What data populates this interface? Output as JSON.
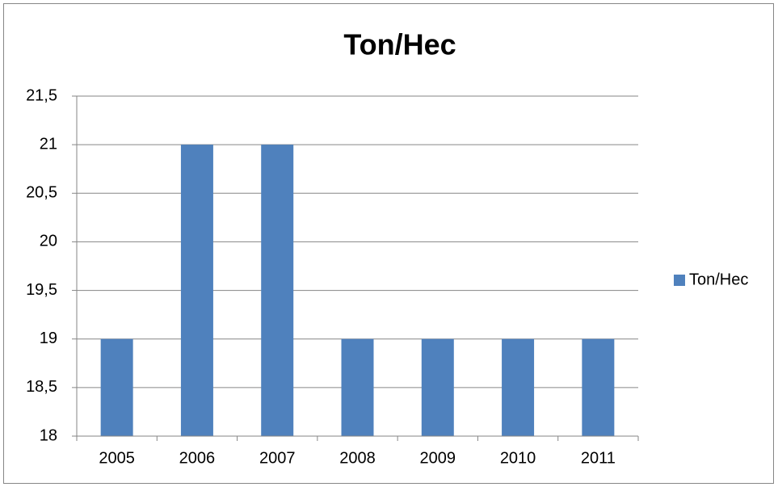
{
  "chart_data": {
    "type": "bar",
    "title": "Ton/Hec",
    "categories": [
      "2005",
      "2006",
      "2007",
      "2008",
      "2009",
      "2010",
      "2011"
    ],
    "series": [
      {
        "name": "Ton/Hec",
        "color": "#4f81bd",
        "values": [
          19,
          21,
          21,
          19,
          19,
          19,
          19
        ]
      }
    ],
    "ylim": [
      18,
      21.5
    ],
    "yticks": [
      18,
      {
        "value": 18.5,
        "label": "18,5"
      },
      19,
      {
        "value": 19.5,
        "label": "19,5"
      },
      20,
      {
        "value": 20.5,
        "label": "20,5"
      },
      21,
      {
        "value": 21.5,
        "label": "21,5"
      }
    ],
    "grid": true,
    "legend": "right"
  }
}
